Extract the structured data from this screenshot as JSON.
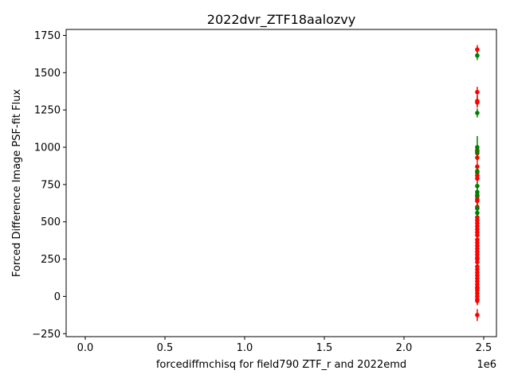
{
  "chart_data": {
    "type": "scatter",
    "title": "2022dvr_ZTF18aalozvy",
    "xlabel": "forcediffmchisq for field790 ZTF_r and 2022emd",
    "ylabel": "Forced Difference Image PSF-fit Flux",
    "x_offset_label": "1e6",
    "xlim": [
      -120000,
      2580000
    ],
    "ylim": [
      -270,
      1790
    ],
    "x_ticks": [
      0,
      500000,
      1000000,
      1500000,
      2000000,
      2500000
    ],
    "x_tick_labels": [
      "0.0",
      "0.5",
      "1.0",
      "1.5",
      "2.0",
      "2.5"
    ],
    "y_ticks": [
      -250,
      0,
      250,
      500,
      750,
      1000,
      1250,
      1500,
      1750
    ],
    "y_tick_labels": [
      "−250",
      "0",
      "250",
      "500",
      "750",
      "1000",
      "1250",
      "1500",
      "1750"
    ],
    "grid": false,
    "series": [
      {
        "color": "#ff0000",
        "x": [
          2459650,
          2459650,
          2459650,
          2459650,
          2459650,
          2459650,
          2459650,
          2459650,
          2459650,
          2459650,
          2459650,
          2459650,
          2459650,
          2459650,
          2459650,
          2459650,
          2459650,
          2459650,
          2459650,
          2459650,
          2459650,
          2459650,
          2459650,
          2459650,
          2459650,
          2459650,
          2459650,
          2459650,
          2459650,
          2459650,
          2459650,
          2459650,
          2459650,
          2459650,
          2459650,
          2459650,
          2459650,
          2459650,
          2459650,
          2459650,
          2459650,
          2459650,
          2459650,
          2459650,
          2459650,
          2459650
        ],
        "y": [
          1655,
          1370,
          1310,
          1300,
          980,
          960,
          930,
          870,
          830,
          810,
          790,
          670,
          650,
          640,
          600,
          530,
          510,
          490,
          470,
          450,
          430,
          410,
          380,
          360,
          340,
          320,
          300,
          280,
          260,
          250,
          230,
          200,
          180,
          160,
          140,
          120,
          100,
          80,
          60,
          40,
          20,
          0,
          -20,
          -30,
          -125,
          55
        ],
        "yerr": [
          30,
          35,
          35,
          35,
          35,
          30,
          30,
          30,
          30,
          30,
          30,
          30,
          30,
          30,
          30,
          30,
          30,
          30,
          30,
          30,
          30,
          30,
          30,
          30,
          30,
          30,
          30,
          30,
          30,
          30,
          30,
          30,
          30,
          30,
          30,
          30,
          30,
          30,
          30,
          30,
          30,
          30,
          30,
          30,
          40,
          30
        ]
      },
      {
        "color": "#008000",
        "x": [
          2459650,
          2459650,
          2459650,
          2459650,
          2459650,
          2459650,
          2459650,
          2459650,
          2459650,
          2459650
        ],
        "y": [
          1615,
          1230,
          1000,
          970,
          840,
          740,
          700,
          680,
          590,
          560
        ],
        "yerr": [
          30,
          30,
          75,
          30,
          30,
          30,
          30,
          30,
          30,
          30
        ]
      }
    ]
  }
}
